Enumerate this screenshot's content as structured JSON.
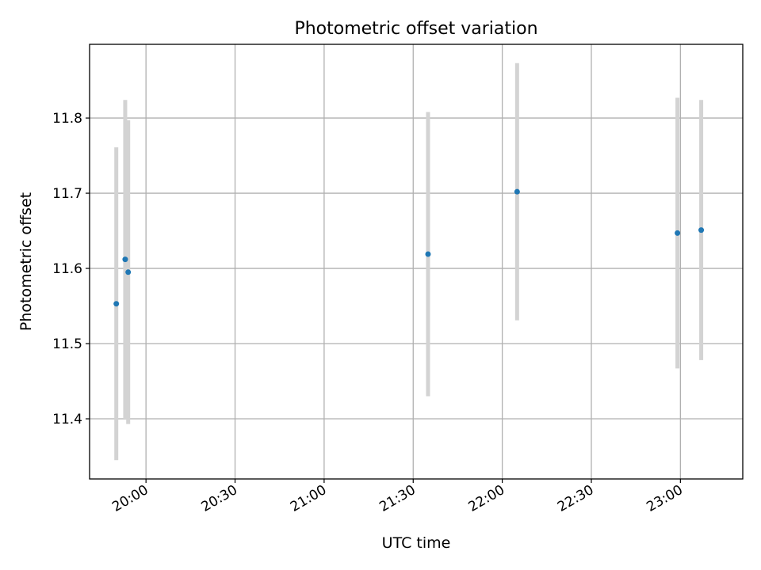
{
  "chart_data": {
    "type": "scatter",
    "title": "Photometric offset variation",
    "xlabel": "UTC time",
    "ylabel": "Photometric offset",
    "x_is_time": true,
    "xlim": [
      "19:41",
      "23:21"
    ],
    "ylim": [
      11.32,
      11.898
    ],
    "x_ticks": [
      "20:00",
      "20:30",
      "21:00",
      "21:30",
      "22:00",
      "22:30",
      "23:00"
    ],
    "y_ticks": [
      11.4,
      11.5,
      11.6,
      11.7,
      11.8
    ],
    "grid": true,
    "legend": "none",
    "colors": {
      "point": "#1f77b4",
      "errorbar": "#d3d3d3",
      "grid": "#b0b0b0",
      "axes": "#000000"
    },
    "points": [
      {
        "x": "19:50",
        "y": 11.553,
        "err": 0.208
      },
      {
        "x": "19:53",
        "y": 11.612,
        "err": 0.212
      },
      {
        "x": "19:54",
        "y": 11.595,
        "err": 0.202
      },
      {
        "x": "21:35",
        "y": 11.619,
        "err": 0.189
      },
      {
        "x": "22:05",
        "y": 11.702,
        "err": 0.171
      },
      {
        "x": "22:59",
        "y": 11.647,
        "err": 0.18
      },
      {
        "x": "23:07",
        "y": 11.651,
        "err": 0.173
      }
    ]
  }
}
